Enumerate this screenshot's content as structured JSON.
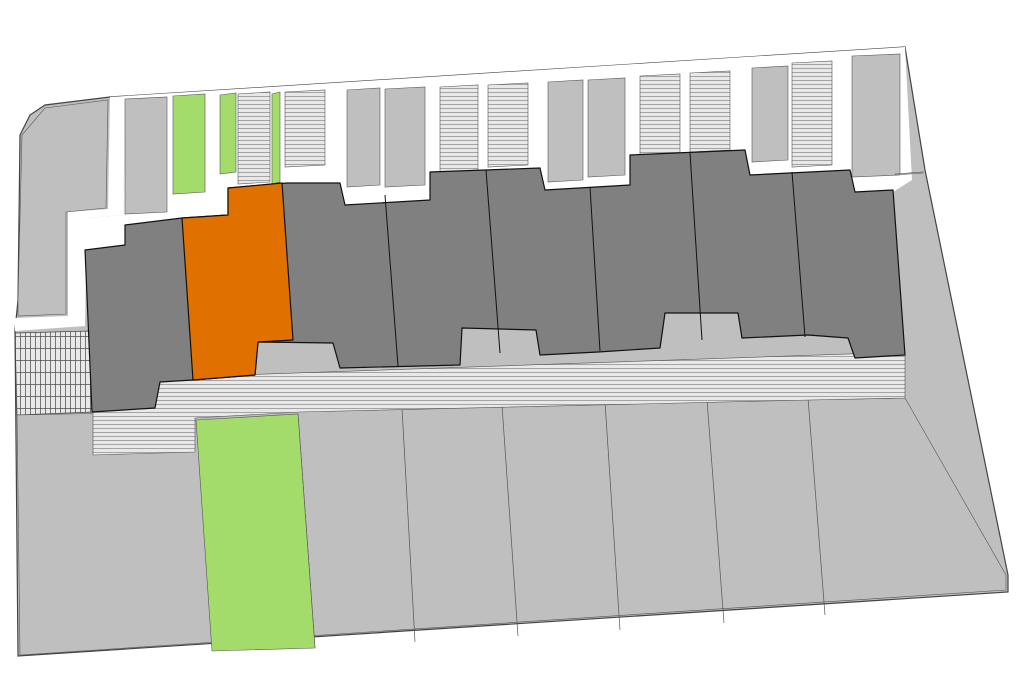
{
  "colors": {
    "background": "#ffffff",
    "site": "#bfbfbf",
    "building": "#808080",
    "highlighted_unit": "#e07000",
    "garden": "#a3dc6a",
    "paving": "#e4e4e4",
    "outline": "#222222"
  }
}
